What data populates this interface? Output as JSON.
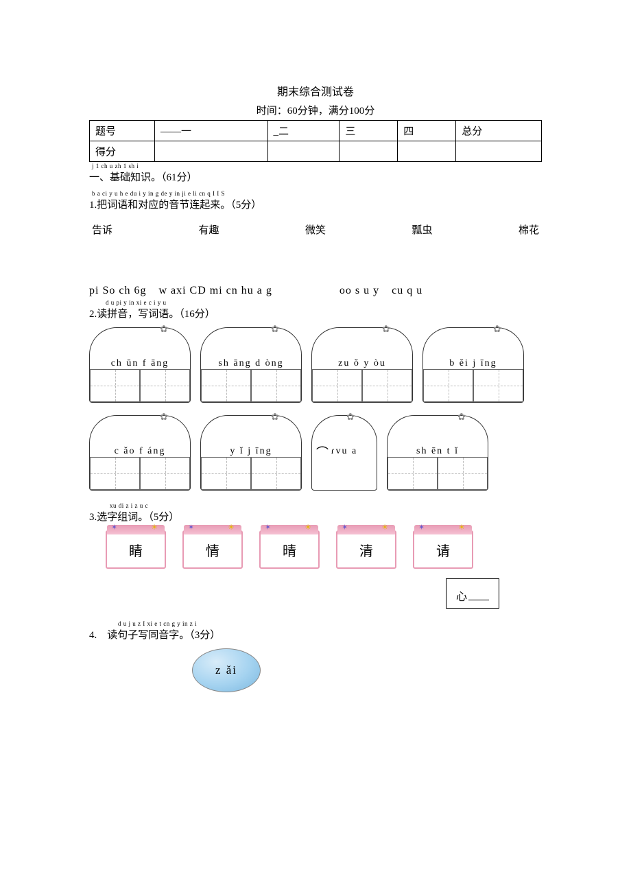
{
  "title": "期末综合测试卷",
  "subtitle": "时间：60分钟，满分100分",
  "score_table": {
    "headers": [
      "题号",
      "——一",
      "_二",
      "三",
      "四",
      "总分"
    ],
    "row_label": "得分"
  },
  "section1": {
    "ruby": "j 1 ch u zh 1 sh i",
    "text": "一、基础知识。（61分）"
  },
  "q1": {
    "ruby": "b a ci y u h e du i y in g de y in ji e li cn q I I S",
    "text": "1.把词语和对应的音节连起来。（5分）",
    "words": [
      "告诉",
      "有趣",
      "微笑",
      "瓢虫",
      "棉花"
    ],
    "pinyin_line": [
      "pi So ch 6g",
      "w axi CD mi cn hu a g",
      "oo s u y",
      "cu q u"
    ]
  },
  "q2": {
    "ruby": "d u pi y in xi e c i y u",
    "text": "2.读拼音，写词语。（16分）",
    "row1": [
      {
        "py": "ch ūn f  āng"
      },
      {
        "py": "sh  āng d  òng"
      },
      {
        "py": "zu  ǒ y  òu"
      },
      {
        "py": "b  ěi  j  īng"
      }
    ],
    "row2": [
      {
        "py": "c  ǎo f  áng"
      },
      {
        "py": "y  ǐ  j  īng"
      },
      {
        "py": "ɾvu a",
        "narrow": true
      },
      {
        "py": "sh  ēn t  ǐ"
      }
    ]
  },
  "q3": {
    "ruby": "xu di z i z u c",
    "text": "3.选字组词。（5分）",
    "chars": [
      "睛",
      "情",
      "晴",
      "清",
      "请"
    ],
    "fill_label": "心"
  },
  "q4": {
    "ruby": "d u j u z I xi e t cn g y in z i",
    "text": "4.　读句子写同音字。（3分）",
    "oval": "z  ǎi"
  },
  "colors": {
    "text": "#000000",
    "bg": "#ffffff",
    "card_border": "#e89bb4",
    "oval_fill": "#a5d3f0"
  }
}
